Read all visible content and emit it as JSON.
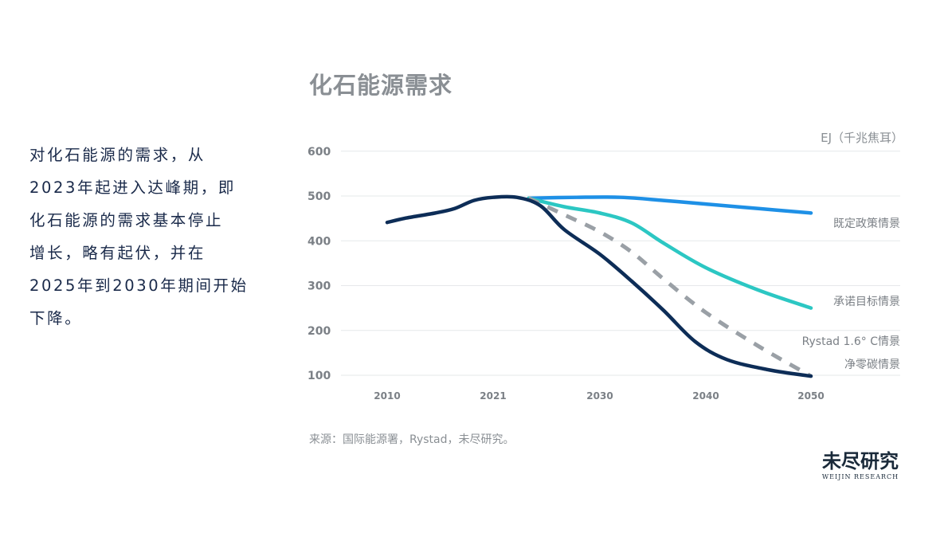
{
  "description": "对化石能源的需求，从\n2023年起进入达峰期，即\n化石能源的需求基本停止\n增长，略有起伏，并在\n2025年到2030年期间开始\n下降。",
  "source": "来源：国际能源署，Rystad，未尽研究。",
  "logo": {
    "cn": "未尽研究",
    "en": "WEIJIN RESEARCH"
  },
  "chart_data": {
    "type": "line",
    "title": "化石能源需求",
    "unit": "EJ（千兆焦耳）",
    "x_ticks": [
      "2010",
      "2021",
      "2030",
      "2040",
      "2050"
    ],
    "y_ticks": [
      600,
      500,
      400,
      300,
      200,
      100
    ],
    "ylim": [
      100,
      600
    ],
    "grid": true,
    "series": [
      {
        "name": "既定政策情景",
        "color": "#1e90e6",
        "dashed": false,
        "points": [
          [
            2024,
            495
          ],
          [
            2028,
            497
          ],
          [
            2032,
            497
          ],
          [
            2036,
            490
          ],
          [
            2040,
            482
          ],
          [
            2045,
            472
          ],
          [
            2050,
            462
          ]
        ]
      },
      {
        "name": "承诺目标情景",
        "color": "#2cc7c3",
        "dashed": false,
        "points": [
          [
            2024,
            495
          ],
          [
            2027,
            476
          ],
          [
            2030,
            462
          ],
          [
            2033,
            440
          ],
          [
            2036,
            395
          ],
          [
            2040,
            340
          ],
          [
            2045,
            290
          ],
          [
            2050,
            250
          ]
        ]
      },
      {
        "name": "Rystad 1.6° C情景",
        "color": "#9aa0a6",
        "dashed": true,
        "points": [
          [
            2024,
            495
          ],
          [
            2027,
            458
          ],
          [
            2030,
            420
          ],
          [
            2033,
            375
          ],
          [
            2036,
            315
          ],
          [
            2040,
            240
          ],
          [
            2045,
            165
          ],
          [
            2050,
            98
          ]
        ]
      },
      {
        "name": "净零碳情景",
        "color": "#0d2d57",
        "dashed": false,
        "points": [
          [
            2010,
            441
          ],
          [
            2012,
            451
          ],
          [
            2015,
            462
          ],
          [
            2017,
            472
          ],
          [
            2019,
            490
          ],
          [
            2021,
            497
          ],
          [
            2023,
            497
          ],
          [
            2025,
            478
          ],
          [
            2027,
            425
          ],
          [
            2030,
            370
          ],
          [
            2033,
            310
          ],
          [
            2036,
            245
          ],
          [
            2039,
            175
          ],
          [
            2042,
            135
          ],
          [
            2046,
            112
          ],
          [
            2050,
            98
          ]
        ]
      }
    ]
  }
}
